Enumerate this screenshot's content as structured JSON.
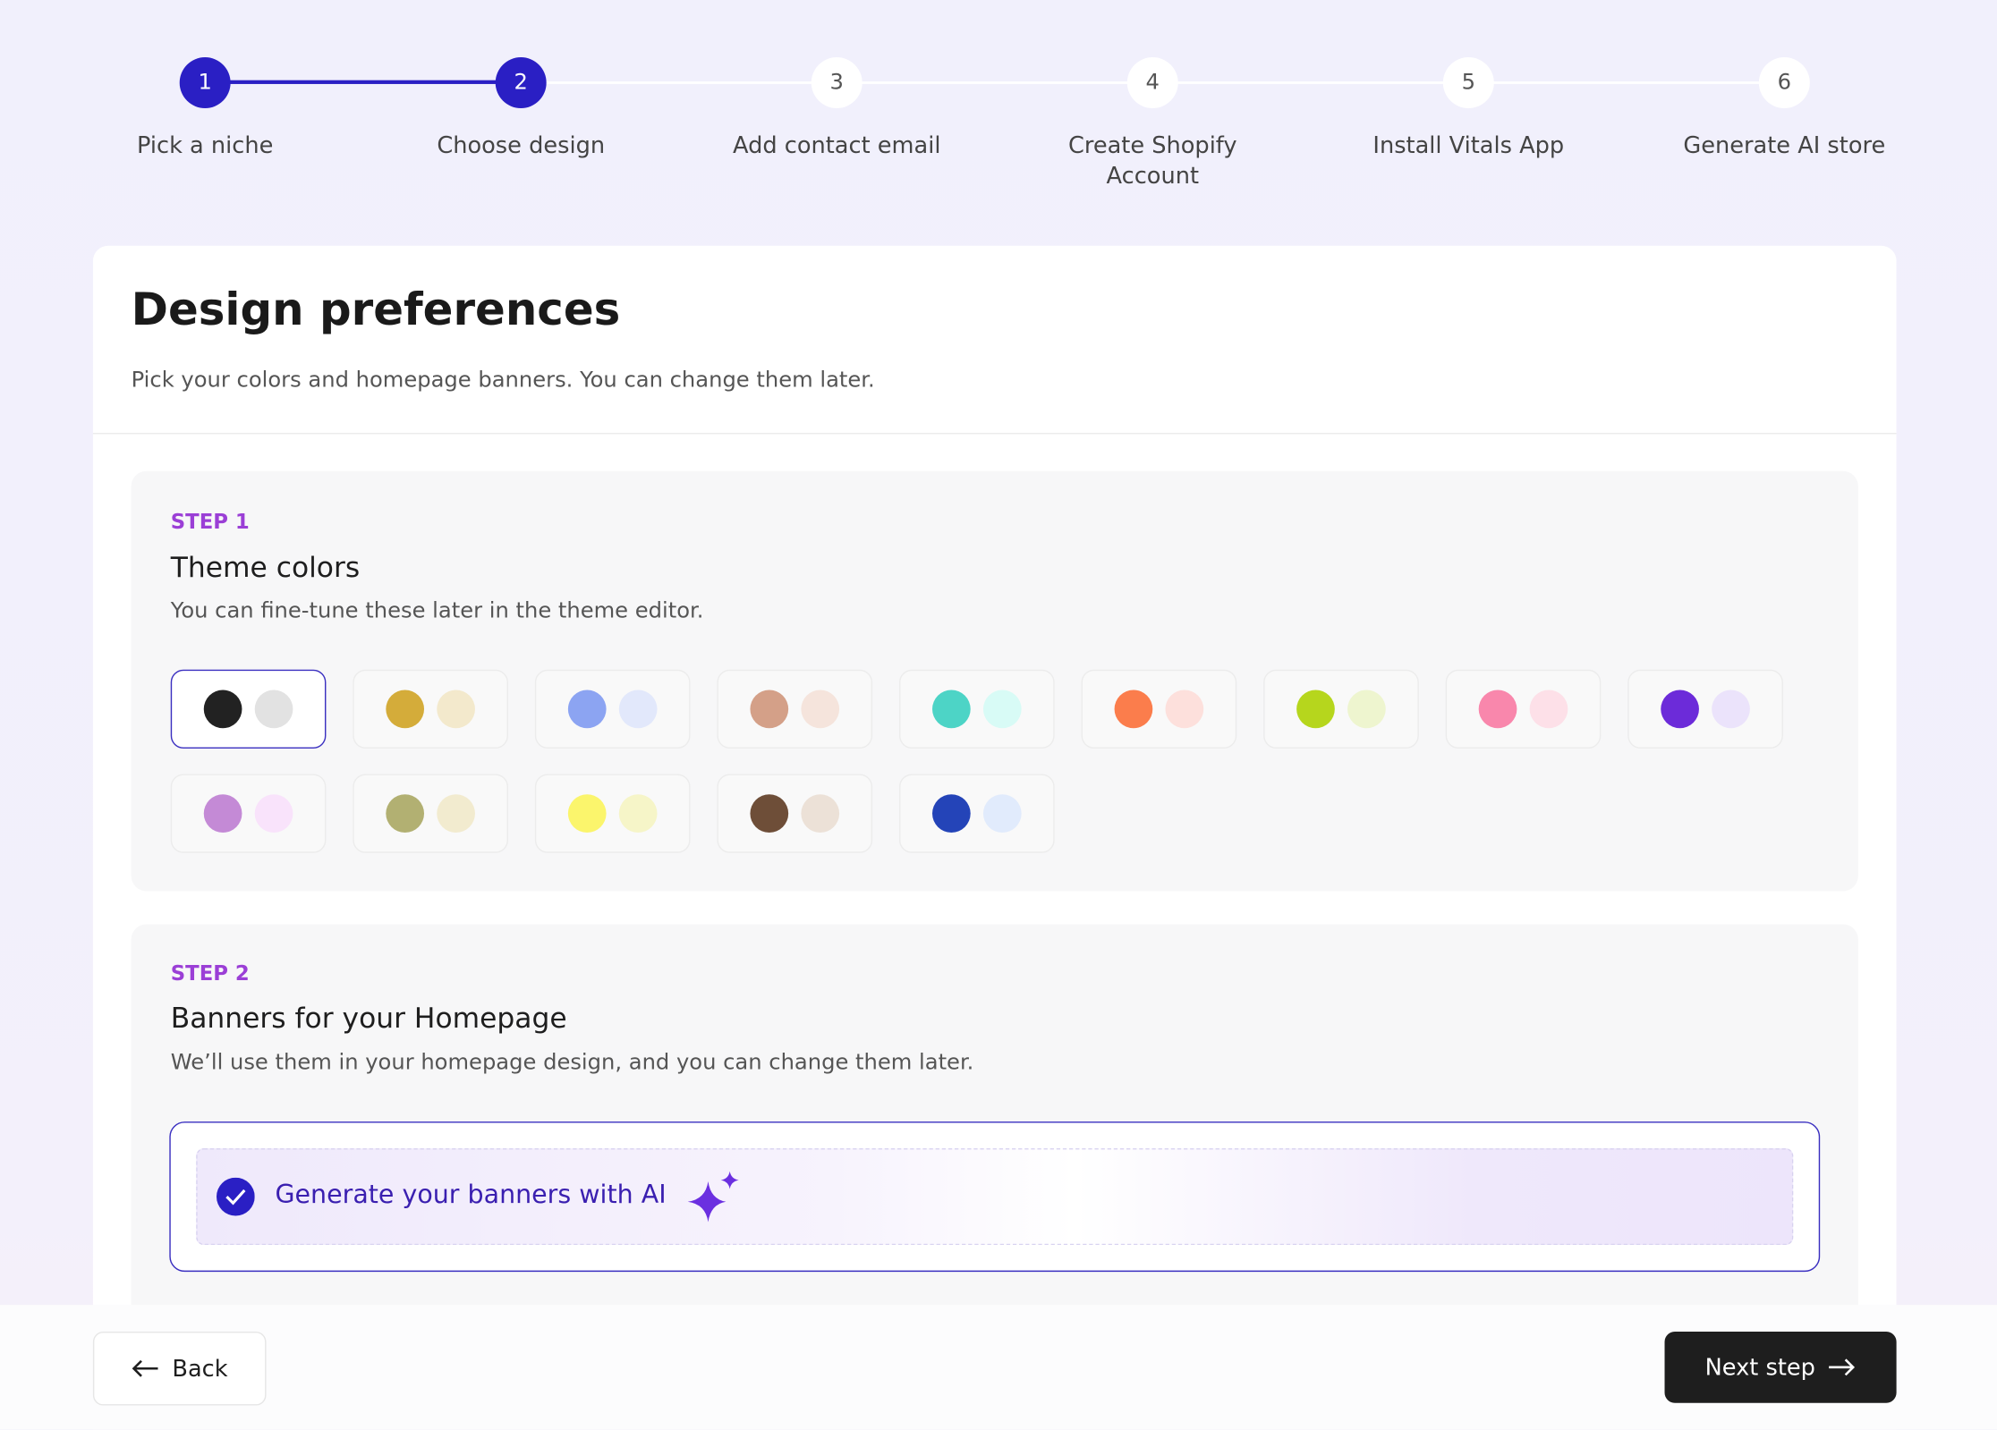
{
  "stepper": {
    "steps": [
      {
        "number": "1",
        "label": "Pick a niche",
        "state": "done"
      },
      {
        "number": "2",
        "label": "Choose design",
        "state": "current"
      },
      {
        "number": "3",
        "label": "Add contact email",
        "state": "todo"
      },
      {
        "number": "4",
        "label": "Create Shopify Account",
        "state": "todo"
      },
      {
        "number": "5",
        "label": "Install Vitals App",
        "state": "todo"
      },
      {
        "number": "6",
        "label": "Generate AI store",
        "state": "todo"
      }
    ]
  },
  "header": {
    "title": "Design preferences",
    "subtitle": "Pick your colors and homepage banners. You can change them later."
  },
  "step1": {
    "label": "STEP 1",
    "title": "Theme colors",
    "description": "You can fine-tune these later in the theme editor.",
    "selected": 0,
    "palettes": [
      [
        "#222222",
        "#e2e2e2"
      ],
      [
        "#d4ac3a",
        "#f3e9cc"
      ],
      [
        "#8ca4f2",
        "#e2e8fb"
      ],
      [
        "#d4a088",
        "#f5e4dc"
      ],
      [
        "#4dd4c6",
        "#d8fbf6"
      ],
      [
        "#fb7d4c",
        "#fde0dc"
      ],
      [
        "#b6d61d",
        "#eef5cf"
      ],
      [
        "#f987ac",
        "#fde0e8"
      ],
      [
        "#6c2bd9",
        "#ebe3fb"
      ],
      [
        "#c48ad6",
        "#f9e3fb"
      ],
      [
        "#b2b072",
        "#f2ebcf"
      ],
      [
        "#fbf56c",
        "#f6f5c8"
      ],
      [
        "#6e4e38",
        "#ece1d7"
      ],
      [
        "#2444b8",
        "#e1ebfc"
      ]
    ]
  },
  "step2": {
    "label": "STEP 2",
    "title": "Banners for your Homepage",
    "description": "We’ll use them in your homepage design, and you can change them later.",
    "option": "Generate your banners with AI"
  },
  "footer": {
    "back": "Back",
    "next": "Next step"
  }
}
